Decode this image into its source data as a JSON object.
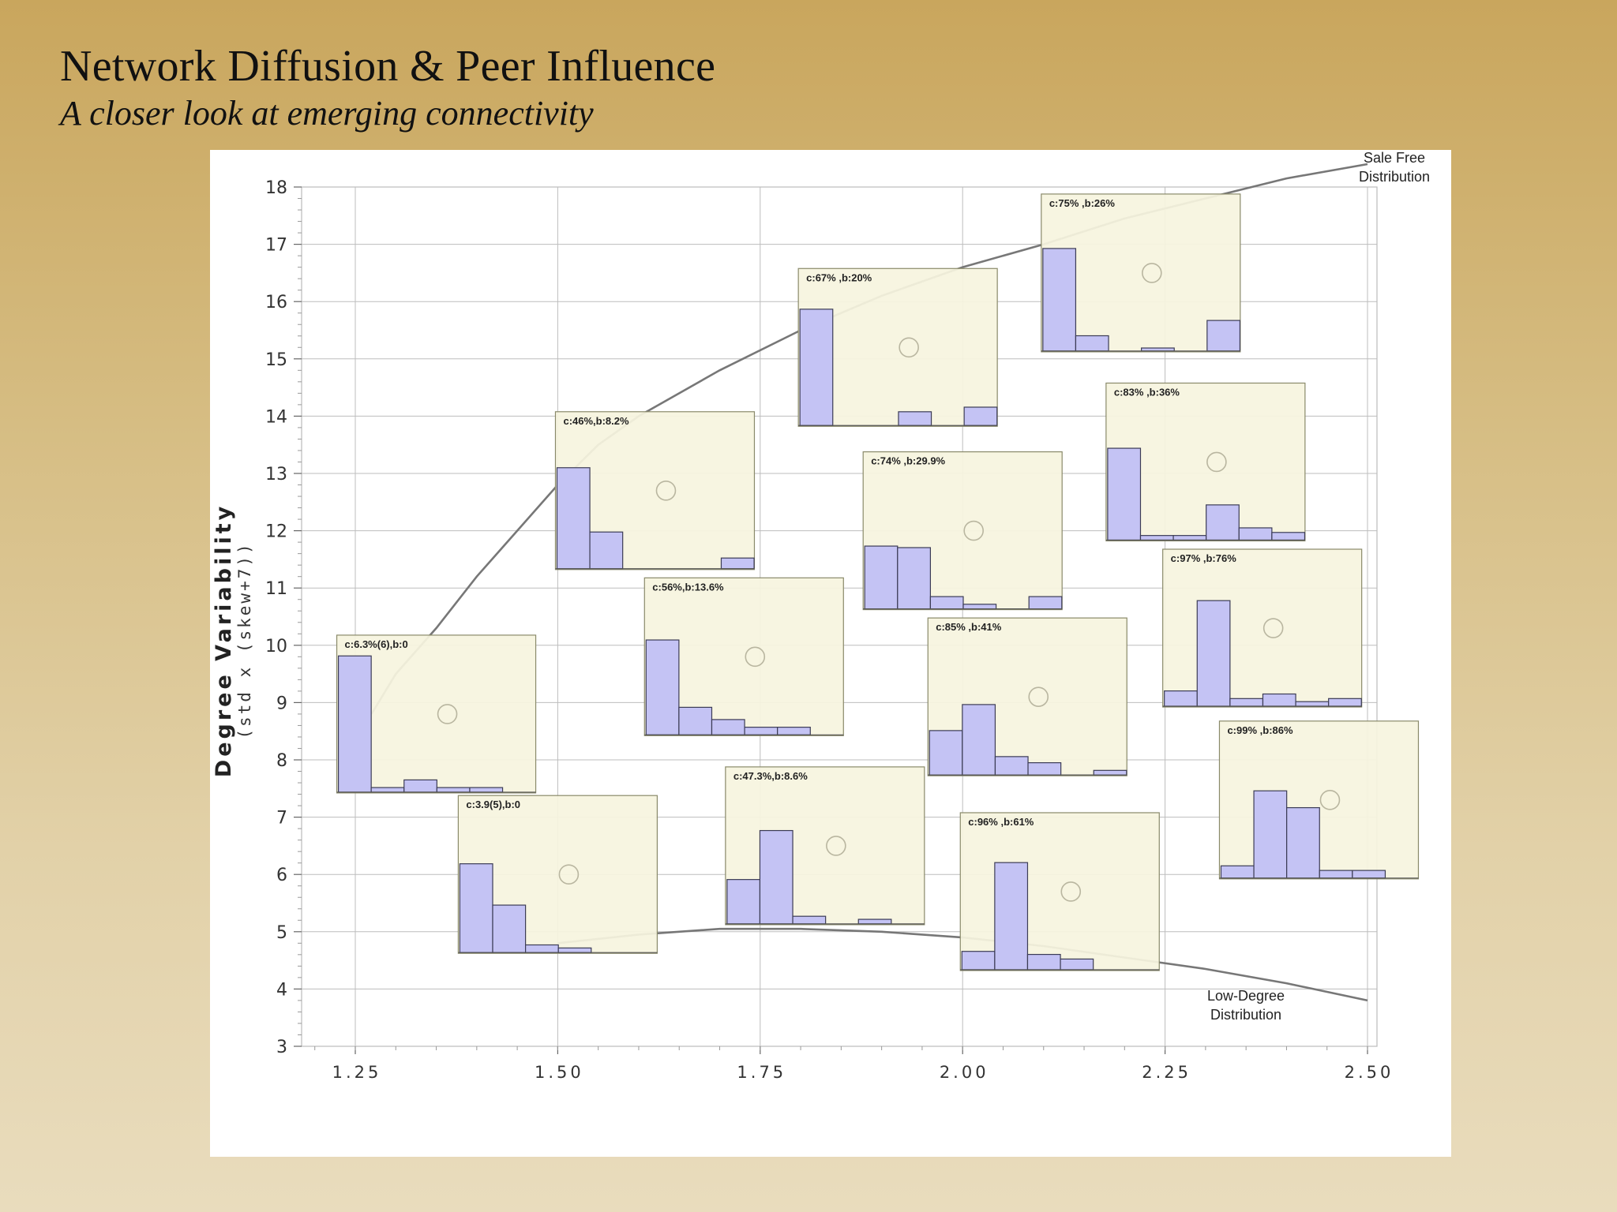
{
  "slide": {
    "title": "Network Diffusion & Peer Influence",
    "subtitle": "A closer look at emerging connectivity"
  },
  "colors": {
    "background_top": "#c9a65d",
    "background_bottom": "#e9dcbd",
    "inset_fill": "#f6f4df",
    "bar_fill": "#c4c3f4",
    "curve": "#777777"
  },
  "chart_data": {
    "type": "scatter",
    "title": "",
    "xlabel": "",
    "ylabel": "Degree Variability",
    "ylabel_secondary": "(std x (skew+7))",
    "xlim": [
      1.2,
      2.5
    ],
    "ylim": [
      3,
      18
    ],
    "x_ticks": [
      "1.25",
      "1.50",
      "1.75",
      "2.00",
      "2.25",
      "2.50"
    ],
    "y_ticks": [
      "18",
      "17",
      "16",
      "15",
      "14",
      "13",
      "12",
      "11",
      "10",
      "9",
      "8",
      "7",
      "6",
      "5",
      "4",
      "3"
    ],
    "grid": true,
    "curves": [
      {
        "label": "Sale Free\nDistribution",
        "x": [
          1.27,
          1.3,
          1.35,
          1.4,
          1.45,
          1.5,
          1.55,
          1.6,
          1.7,
          1.8,
          1.9,
          2.0,
          2.1,
          2.2,
          2.3,
          2.4,
          2.5
        ],
        "y": [
          8.8,
          9.5,
          10.3,
          11.2,
          12.0,
          12.8,
          13.5,
          14.0,
          14.8,
          15.5,
          16.1,
          16.6,
          17.0,
          17.45,
          17.8,
          18.15,
          18.4
        ]
      },
      {
        "label": "Low-Degree\nDistribution",
        "x": [
          1.5,
          1.6,
          1.7,
          1.8,
          1.9,
          2.0,
          2.1,
          2.2,
          2.3,
          2.4,
          2.5
        ],
        "y": [
          4.8,
          4.95,
          5.05,
          5.05,
          5.0,
          4.9,
          4.75,
          4.55,
          4.35,
          4.1,
          3.8
        ]
      }
    ],
    "insets": [
      {
        "label": "c:6.3%(6),b:0",
        "x": 1.35,
        "y": 8.8,
        "bars": [
          0.89,
          0.03,
          0.08,
          0.03,
          0.03,
          0,
          0
        ]
      },
      {
        "label": "c:3.9(5),b:0",
        "x": 1.5,
        "y": 6.0,
        "bars": [
          0.58,
          0.31,
          0.05,
          0.03,
          0,
          0,
          0
        ]
      },
      {
        "label": "c:46%,b:8.2%",
        "x": 1.62,
        "y": 12.7,
        "bars": [
          0.66,
          0.24,
          0,
          0,
          0,
          0.07,
          0
        ]
      },
      {
        "label": "c:56%,b:13.6%",
        "x": 1.73,
        "y": 9.8,
        "bars": [
          0.62,
          0.18,
          0.1,
          0.05,
          0.05,
          0,
          0
        ]
      },
      {
        "label": "c:47.3%,b:8.6%",
        "x": 1.83,
        "y": 6.5,
        "bars": [
          0.29,
          0.61,
          0.05,
          0,
          0.03,
          0,
          0
        ]
      },
      {
        "label": "c:67% ,b:20%",
        "x": 1.92,
        "y": 15.2,
        "bars": [
          0.76,
          0,
          0,
          0.09,
          0,
          0.12,
          0
        ]
      },
      {
        "label": "c:74% ,b:29.9%",
        "x": 2.0,
        "y": 12.0,
        "bars": [
          0.41,
          0.4,
          0.08,
          0.03,
          0,
          0.08,
          0
        ]
      },
      {
        "label": "c:85% ,b:41%",
        "x": 2.08,
        "y": 9.1,
        "bars": [
          0.29,
          0.46,
          0.12,
          0.08,
          0,
          0.03,
          0
        ]
      },
      {
        "label": "c:96% ,b:61%",
        "x": 2.12,
        "y": 5.7,
        "bars": [
          0.12,
          0.7,
          0.1,
          0.07,
          0,
          0,
          0
        ]
      },
      {
        "label": "c:75% ,b:26%",
        "x": 2.22,
        "y": 16.5,
        "bars": [
          0.67,
          0.1,
          0,
          0.02,
          0,
          0.2,
          0
        ]
      },
      {
        "label": "c:83% ,b:36%",
        "x": 2.3,
        "y": 13.2,
        "bars": [
          0.6,
          0.03,
          0.03,
          0.23,
          0.08,
          0.05,
          0
        ]
      },
      {
        "label": "c:97% ,b:76%",
        "x": 2.37,
        "y": 10.3,
        "bars": [
          0.1,
          0.69,
          0.05,
          0.08,
          0.03,
          0.05,
          0
        ]
      },
      {
        "label": "c:99% ,b:86%",
        "x": 2.44,
        "y": 7.3,
        "bars": [
          0.08,
          0.57,
          0.46,
          0.05,
          0.05,
          0,
          0
        ]
      }
    ]
  }
}
